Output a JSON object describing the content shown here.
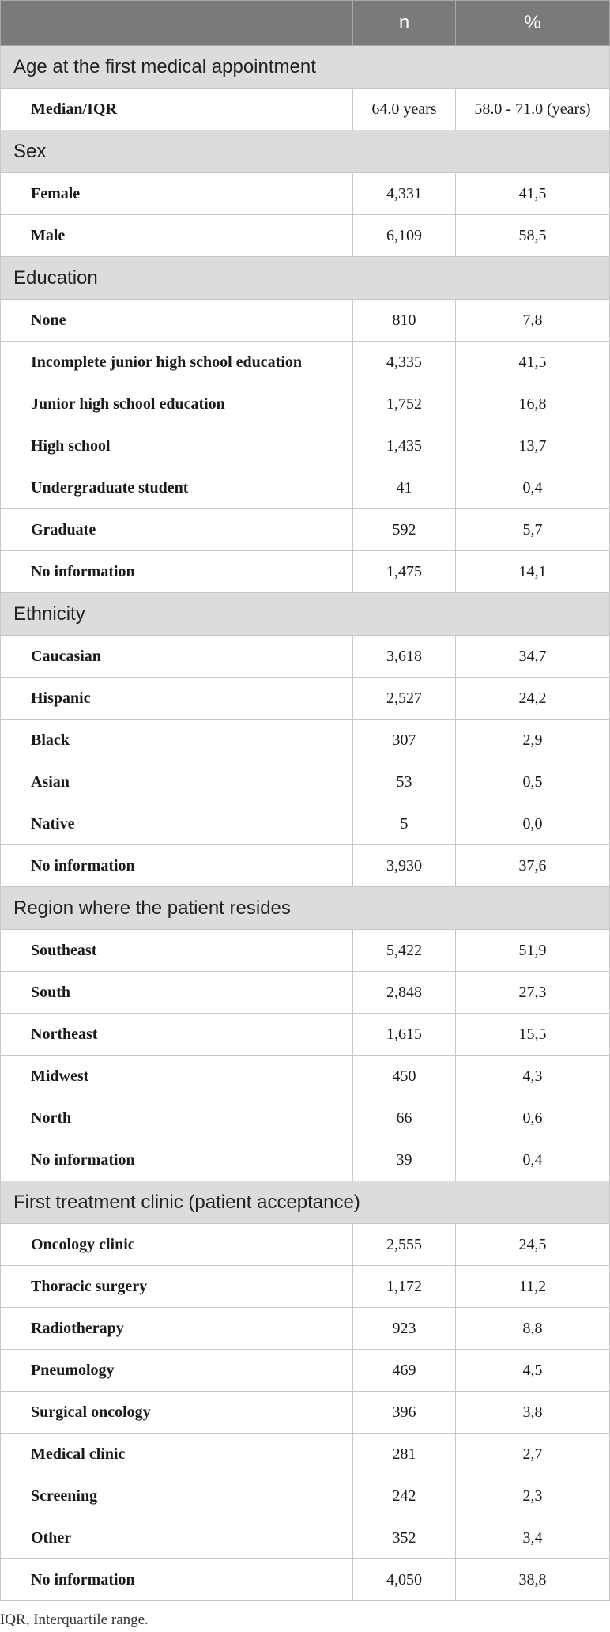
{
  "columns": {
    "label": "",
    "n": "n",
    "pct": "%"
  },
  "sections": [
    {
      "title": "Age at the first medical appointment",
      "rows": [
        {
          "label": "Median/IQR",
          "n": "64.0 years",
          "pct": "58.0 - 71.0 (years)"
        }
      ]
    },
    {
      "title": "Sex",
      "rows": [
        {
          "label": "Female",
          "n": "4,331",
          "pct": "41,5"
        },
        {
          "label": "Male",
          "n": "6,109",
          "pct": "58,5"
        }
      ]
    },
    {
      "title": "Education",
      "rows": [
        {
          "label": "None",
          "n": "810",
          "pct": "7,8"
        },
        {
          "label": "Incomplete junior high school education",
          "n": "4,335",
          "pct": "41,5"
        },
        {
          "label": "Junior high school education",
          "n": "1,752",
          "pct": "16,8"
        },
        {
          "label": "High school",
          "n": "1,435",
          "pct": "13,7"
        },
        {
          "label": "Undergraduate student",
          "n": "41",
          "pct": "0,4"
        },
        {
          "label": "Graduate",
          "n": "592",
          "pct": "5,7"
        },
        {
          "label": "No information",
          "n": "1,475",
          "pct": "14,1"
        }
      ]
    },
    {
      "title": "Ethnicity",
      "rows": [
        {
          "label": "Caucasian",
          "n": "3,618",
          "pct": "34,7"
        },
        {
          "label": "Hispanic",
          "n": "2,527",
          "pct": "24,2"
        },
        {
          "label": "Black",
          "n": "307",
          "pct": "2,9"
        },
        {
          "label": "Asian",
          "n": "53",
          "pct": "0,5"
        },
        {
          "label": "Native",
          "n": "5",
          "pct": "0,0"
        },
        {
          "label": "No information",
          "n": "3,930",
          "pct": "37,6"
        }
      ]
    },
    {
      "title": "Region where the patient resides",
      "rows": [
        {
          "label": "Southeast",
          "n": "5,422",
          "pct": "51,9"
        },
        {
          "label": "South",
          "n": "2,848",
          "pct": "27,3"
        },
        {
          "label": "Northeast",
          "n": "1,615",
          "pct": "15,5"
        },
        {
          "label": "Midwest",
          "n": "450",
          "pct": "4,3"
        },
        {
          "label": "North",
          "n": "66",
          "pct": "0,6"
        },
        {
          "label": "No information",
          "n": "39",
          "pct": "0,4"
        }
      ]
    },
    {
      "title": "First treatment clinic (patient acceptance)",
      "rows": [
        {
          "label": "Oncology clinic",
          "n": "2,555",
          "pct": "24,5"
        },
        {
          "label": "Thoracic surgery",
          "n": "1,172",
          "pct": "11,2"
        },
        {
          "label": "Radiotherapy",
          "n": "923",
          "pct": "8,8"
        },
        {
          "label": "Pneumology",
          "n": "469",
          "pct": "4,5"
        },
        {
          "label": "Surgical oncology",
          "n": "396",
          "pct": "3,8"
        },
        {
          "label": "Medical clinic",
          "n": "281",
          "pct": "2,7"
        },
        {
          "label": "Screening",
          "n": "242",
          "pct": "2,3"
        },
        {
          "label": "Other",
          "n": "352",
          "pct": "3,4"
        },
        {
          "label": "No information",
          "n": "4,050",
          "pct": "38,8"
        }
      ]
    }
  ],
  "footnote": "IQR, Interquartile range."
}
